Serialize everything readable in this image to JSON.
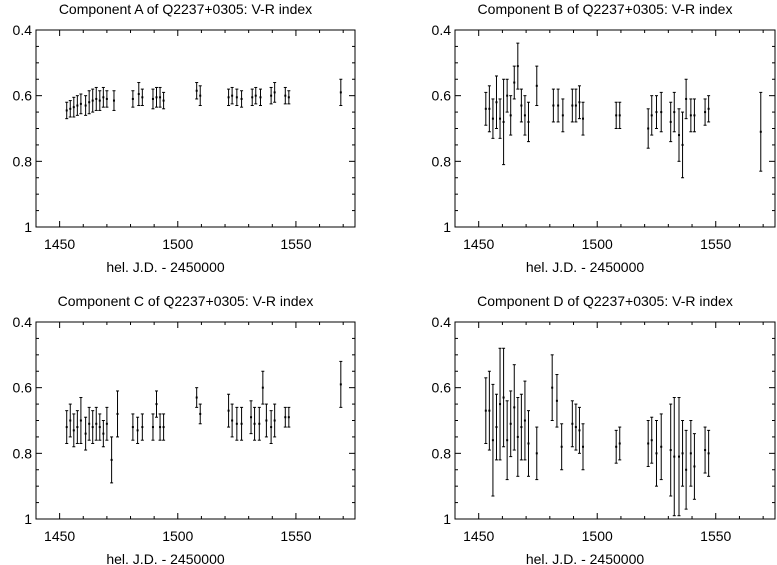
{
  "chart_data": [
    {
      "type": "scatter",
      "title": "Component A of Q2237+0305: V-R index",
      "xlabel": "hel. J.D. - 2450000",
      "ylabel": "",
      "xlim": [
        1440,
        1575
      ],
      "ylim": [
        0.4,
        1.0
      ],
      "y_inverted": true,
      "x_ticks": [
        1450,
        1500,
        1550
      ],
      "y_ticks": [
        0.4,
        0.6,
        0.8,
        1
      ],
      "tick_labels_x": [
        "1450",
        "1500",
        "1550"
      ],
      "tick_labels_y": [
        "0.4",
        "0.6",
        "0.8",
        "1"
      ],
      "grid": false,
      "points": [
        {
          "x": 1453,
          "y": 0.645,
          "err": 0.025
        },
        {
          "x": 1454.5,
          "y": 0.64,
          "err": 0.025
        },
        {
          "x": 1456,
          "y": 0.635,
          "err": 0.03
        },
        {
          "x": 1457.5,
          "y": 0.63,
          "err": 0.03
        },
        {
          "x": 1459,
          "y": 0.625,
          "err": 0.03
        },
        {
          "x": 1461,
          "y": 0.63,
          "err": 0.03
        },
        {
          "x": 1462.5,
          "y": 0.62,
          "err": 0.035
        },
        {
          "x": 1464,
          "y": 0.615,
          "err": 0.035
        },
        {
          "x": 1465.5,
          "y": 0.61,
          "err": 0.035
        },
        {
          "x": 1467,
          "y": 0.615,
          "err": 0.03
        },
        {
          "x": 1468.5,
          "y": 0.605,
          "err": 0.03
        },
        {
          "x": 1470,
          "y": 0.61,
          "err": 0.025
        },
        {
          "x": 1473,
          "y": 0.615,
          "err": 0.03
        },
        {
          "x": 1481,
          "y": 0.61,
          "err": 0.025
        },
        {
          "x": 1483.5,
          "y": 0.595,
          "err": 0.035
        },
        {
          "x": 1485,
          "y": 0.605,
          "err": 0.025
        },
        {
          "x": 1489.5,
          "y": 0.61,
          "err": 0.03
        },
        {
          "x": 1491,
          "y": 0.605,
          "err": 0.03
        },
        {
          "x": 1492.5,
          "y": 0.605,
          "err": 0.03
        },
        {
          "x": 1494,
          "y": 0.615,
          "err": 0.025
        },
        {
          "x": 1508,
          "y": 0.585,
          "err": 0.025
        },
        {
          "x": 1509.5,
          "y": 0.6,
          "err": 0.03
        },
        {
          "x": 1521.5,
          "y": 0.605,
          "err": 0.025
        },
        {
          "x": 1523,
          "y": 0.6,
          "err": 0.025
        },
        {
          "x": 1525,
          "y": 0.605,
          "err": 0.025
        },
        {
          "x": 1527,
          "y": 0.61,
          "err": 0.025
        },
        {
          "x": 1531.5,
          "y": 0.605,
          "err": 0.025
        },
        {
          "x": 1533,
          "y": 0.6,
          "err": 0.025
        },
        {
          "x": 1535,
          "y": 0.605,
          "err": 0.025
        },
        {
          "x": 1539.5,
          "y": 0.6,
          "err": 0.025
        },
        {
          "x": 1541,
          "y": 0.59,
          "err": 0.03
        },
        {
          "x": 1545.5,
          "y": 0.6,
          "err": 0.025
        },
        {
          "x": 1547,
          "y": 0.605,
          "err": 0.02
        },
        {
          "x": 1569,
          "y": 0.59,
          "err": 0.04
        }
      ]
    },
    {
      "type": "scatter",
      "title": "Component B of Q2237+0305: V-R index",
      "xlabel": "hel. J.D. - 2450000",
      "ylabel": "",
      "xlim": [
        1440,
        1575
      ],
      "ylim": [
        0.4,
        1.0
      ],
      "y_inverted": true,
      "x_ticks": [
        1450,
        1500,
        1550
      ],
      "y_ticks": [
        0.4,
        0.6,
        0.8,
        1
      ],
      "tick_labels_x": [
        "1450",
        "1500",
        "1550"
      ],
      "tick_labels_y": [
        "0.4",
        "0.6",
        "0.8",
        "1"
      ],
      "grid": false,
      "points": [
        {
          "x": 1453,
          "y": 0.64,
          "err": 0.05
        },
        {
          "x": 1454.5,
          "y": 0.64,
          "err": 0.07
        },
        {
          "x": 1456,
          "y": 0.67,
          "err": 0.06
        },
        {
          "x": 1457.5,
          "y": 0.62,
          "err": 0.08
        },
        {
          "x": 1459,
          "y": 0.67,
          "err": 0.06
        },
        {
          "x": 1460.5,
          "y": 0.68,
          "err": 0.13
        },
        {
          "x": 1462,
          "y": 0.6,
          "err": 0.05
        },
        {
          "x": 1463.5,
          "y": 0.66,
          "err": 0.06
        },
        {
          "x": 1465,
          "y": 0.56,
          "err": 0.05
        },
        {
          "x": 1466.5,
          "y": 0.51,
          "err": 0.07
        },
        {
          "x": 1468,
          "y": 0.63,
          "err": 0.05
        },
        {
          "x": 1469.5,
          "y": 0.66,
          "err": 0.06
        },
        {
          "x": 1471,
          "y": 0.68,
          "err": 0.06
        },
        {
          "x": 1474.5,
          "y": 0.57,
          "err": 0.06
        },
        {
          "x": 1481.5,
          "y": 0.63,
          "err": 0.05
        },
        {
          "x": 1483.5,
          "y": 0.63,
          "err": 0.05
        },
        {
          "x": 1485.5,
          "y": 0.66,
          "err": 0.05
        },
        {
          "x": 1489.5,
          "y": 0.63,
          "err": 0.05
        },
        {
          "x": 1491,
          "y": 0.63,
          "err": 0.05
        },
        {
          "x": 1492.5,
          "y": 0.62,
          "err": 0.05
        },
        {
          "x": 1494,
          "y": 0.67,
          "err": 0.05
        },
        {
          "x": 1508,
          "y": 0.66,
          "err": 0.04
        },
        {
          "x": 1509.5,
          "y": 0.66,
          "err": 0.04
        },
        {
          "x": 1521.5,
          "y": 0.7,
          "err": 0.06
        },
        {
          "x": 1523,
          "y": 0.66,
          "err": 0.06
        },
        {
          "x": 1525,
          "y": 0.65,
          "err": 0.05
        },
        {
          "x": 1527,
          "y": 0.65,
          "err": 0.06
        },
        {
          "x": 1531,
          "y": 0.68,
          "err": 0.06
        },
        {
          "x": 1532.5,
          "y": 0.65,
          "err": 0.06
        },
        {
          "x": 1534.5,
          "y": 0.72,
          "err": 0.08
        },
        {
          "x": 1536,
          "y": 0.75,
          "err": 0.1
        },
        {
          "x": 1537.5,
          "y": 0.61,
          "err": 0.06
        },
        {
          "x": 1539.5,
          "y": 0.66,
          "err": 0.05
        },
        {
          "x": 1541,
          "y": 0.66,
          "err": 0.05
        },
        {
          "x": 1545.5,
          "y": 0.65,
          "err": 0.04
        },
        {
          "x": 1547,
          "y": 0.64,
          "err": 0.04
        },
        {
          "x": 1569,
          "y": 0.71,
          "err": 0.12
        }
      ]
    },
    {
      "type": "scatter",
      "title": "Component C of Q2237+0305: V-R index",
      "xlabel": "hel. J.D. - 2450000",
      "ylabel": "",
      "xlim": [
        1440,
        1575
      ],
      "ylim": [
        0.4,
        1.0
      ],
      "y_inverted": true,
      "x_ticks": [
        1450,
        1500,
        1550
      ],
      "y_ticks": [
        0.4,
        0.6,
        0.8,
        1
      ],
      "tick_labels_x": [
        "1450",
        "1500",
        "1550"
      ],
      "tick_labels_y": [
        "0.4",
        "0.6",
        "0.8",
        "1"
      ],
      "grid": false,
      "points": [
        {
          "x": 1453,
          "y": 0.72,
          "err": 0.05
        },
        {
          "x": 1454.5,
          "y": 0.7,
          "err": 0.05
        },
        {
          "x": 1456,
          "y": 0.73,
          "err": 0.05
        },
        {
          "x": 1457.5,
          "y": 0.72,
          "err": 0.05
        },
        {
          "x": 1459,
          "y": 0.7,
          "err": 0.07
        },
        {
          "x": 1461,
          "y": 0.74,
          "err": 0.05
        },
        {
          "x": 1462.5,
          "y": 0.71,
          "err": 0.05
        },
        {
          "x": 1464,
          "y": 0.72,
          "err": 0.05
        },
        {
          "x": 1465.5,
          "y": 0.71,
          "err": 0.05
        },
        {
          "x": 1467,
          "y": 0.72,
          "err": 0.04
        },
        {
          "x": 1468.5,
          "y": 0.74,
          "err": 0.04
        },
        {
          "x": 1470,
          "y": 0.71,
          "err": 0.05
        },
        {
          "x": 1472,
          "y": 0.82,
          "err": 0.07
        },
        {
          "x": 1474.5,
          "y": 0.68,
          "err": 0.07
        },
        {
          "x": 1481,
          "y": 0.72,
          "err": 0.04
        },
        {
          "x": 1483,
          "y": 0.73,
          "err": 0.04
        },
        {
          "x": 1485,
          "y": 0.72,
          "err": 0.04
        },
        {
          "x": 1489.5,
          "y": 0.72,
          "err": 0.04
        },
        {
          "x": 1491,
          "y": 0.65,
          "err": 0.04
        },
        {
          "x": 1492.5,
          "y": 0.72,
          "err": 0.04
        },
        {
          "x": 1494,
          "y": 0.72,
          "err": 0.04
        },
        {
          "x": 1508,
          "y": 0.63,
          "err": 0.03
        },
        {
          "x": 1509.5,
          "y": 0.68,
          "err": 0.03
        },
        {
          "x": 1521.5,
          "y": 0.67,
          "err": 0.05
        },
        {
          "x": 1523,
          "y": 0.7,
          "err": 0.05
        },
        {
          "x": 1525,
          "y": 0.71,
          "err": 0.05
        },
        {
          "x": 1527,
          "y": 0.71,
          "err": 0.05
        },
        {
          "x": 1531,
          "y": 0.69,
          "err": 0.05
        },
        {
          "x": 1532.5,
          "y": 0.71,
          "err": 0.05
        },
        {
          "x": 1534.5,
          "y": 0.71,
          "err": 0.05
        },
        {
          "x": 1536,
          "y": 0.6,
          "err": 0.05
        },
        {
          "x": 1537.5,
          "y": 0.7,
          "err": 0.05
        },
        {
          "x": 1539.5,
          "y": 0.72,
          "err": 0.05
        },
        {
          "x": 1541,
          "y": 0.7,
          "err": 0.05
        },
        {
          "x": 1545.5,
          "y": 0.69,
          "err": 0.03
        },
        {
          "x": 1547,
          "y": 0.69,
          "err": 0.03
        },
        {
          "x": 1569,
          "y": 0.59,
          "err": 0.07
        }
      ]
    },
    {
      "type": "scatter",
      "title": "Component D of Q2237+0305: V-R index",
      "xlabel": "hel. J.D. - 2450000",
      "ylabel": "",
      "xlim": [
        1440,
        1575
      ],
      "ylim": [
        0.4,
        1.0
      ],
      "y_inverted": true,
      "x_ticks": [
        1450,
        1500,
        1550
      ],
      "y_ticks": [
        0.4,
        0.6,
        0.8,
        1
      ],
      "tick_labels_x": [
        "1450",
        "1500",
        "1550"
      ],
      "tick_labels_y": [
        "0.4",
        "0.6",
        "0.8",
        "1"
      ],
      "grid": false,
      "points": [
        {
          "x": 1453,
          "y": 0.67,
          "err": 0.1
        },
        {
          "x": 1454.5,
          "y": 0.67,
          "err": 0.12
        },
        {
          "x": 1456,
          "y": 0.76,
          "err": 0.17
        },
        {
          "x": 1457.5,
          "y": 0.72,
          "err": 0.1
        },
        {
          "x": 1459,
          "y": 0.65,
          "err": 0.17
        },
        {
          "x": 1460.5,
          "y": 0.63,
          "err": 0.15
        },
        {
          "x": 1462,
          "y": 0.76,
          "err": 0.12
        },
        {
          "x": 1463.5,
          "y": 0.71,
          "err": 0.1
        },
        {
          "x": 1465,
          "y": 0.66,
          "err": 0.13
        },
        {
          "x": 1466.5,
          "y": 0.75,
          "err": 0.12
        },
        {
          "x": 1468,
          "y": 0.72,
          "err": 0.1
        },
        {
          "x": 1469.5,
          "y": 0.7,
          "err": 0.12
        },
        {
          "x": 1471,
          "y": 0.77,
          "err": 0.1
        },
        {
          "x": 1474.5,
          "y": 0.8,
          "err": 0.08
        },
        {
          "x": 1481,
          "y": 0.6,
          "err": 0.1
        },
        {
          "x": 1483,
          "y": 0.64,
          "err": 0.08
        },
        {
          "x": 1485,
          "y": 0.78,
          "err": 0.07
        },
        {
          "x": 1489.5,
          "y": 0.71,
          "err": 0.07
        },
        {
          "x": 1491,
          "y": 0.72,
          "err": 0.07
        },
        {
          "x": 1492.5,
          "y": 0.73,
          "err": 0.07
        },
        {
          "x": 1494,
          "y": 0.78,
          "err": 0.07
        },
        {
          "x": 1508,
          "y": 0.78,
          "err": 0.05
        },
        {
          "x": 1509.5,
          "y": 0.77,
          "err": 0.05
        },
        {
          "x": 1521.5,
          "y": 0.77,
          "err": 0.07
        },
        {
          "x": 1523,
          "y": 0.76,
          "err": 0.07
        },
        {
          "x": 1525,
          "y": 0.8,
          "err": 0.1
        },
        {
          "x": 1527,
          "y": 0.78,
          "err": 0.1
        },
        {
          "x": 1531,
          "y": 0.79,
          "err": 0.14
        },
        {
          "x": 1532.5,
          "y": 0.81,
          "err": 0.18
        },
        {
          "x": 1534.5,
          "y": 0.81,
          "err": 0.18
        },
        {
          "x": 1536,
          "y": 0.8,
          "err": 0.1
        },
        {
          "x": 1537.5,
          "y": 0.85,
          "err": 0.12
        },
        {
          "x": 1539.5,
          "y": 0.8,
          "err": 0.1
        },
        {
          "x": 1541,
          "y": 0.84,
          "err": 0.1
        },
        {
          "x": 1545.5,
          "y": 0.79,
          "err": 0.07
        },
        {
          "x": 1547,
          "y": 0.8,
          "err": 0.07
        }
      ]
    }
  ]
}
